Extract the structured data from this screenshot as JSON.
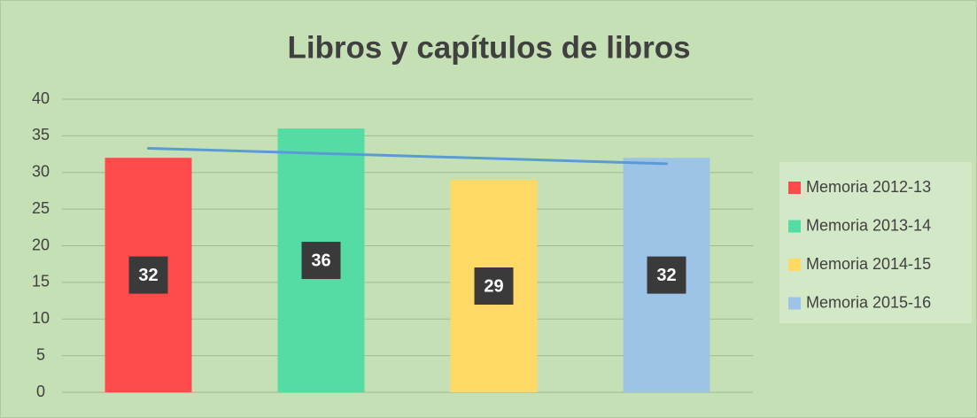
{
  "chart_data": {
    "type": "bar",
    "title": "Libros y capítulos de libros",
    "series": [
      {
        "name": "Memoria 2012-13",
        "color": "#ff4b4b",
        "values": [
          32
        ]
      },
      {
        "name": "Memoria 2013-14",
        "color": "#55dca4",
        "values": [
          36
        ]
      },
      {
        "name": "Memoria 2014-15",
        "color": "#ffd966",
        "values": [
          29
        ]
      },
      {
        "name": "Memoria 2015-16",
        "color": "#9dc3e6",
        "values": [
          32
        ]
      }
    ],
    "ylim": [
      0,
      40
    ],
    "yticks": [
      0,
      5,
      10,
      15,
      20,
      25,
      30,
      35,
      40
    ],
    "grid": true,
    "legend": "right",
    "trendline": true,
    "trendline_color": "#5b9bd5"
  }
}
